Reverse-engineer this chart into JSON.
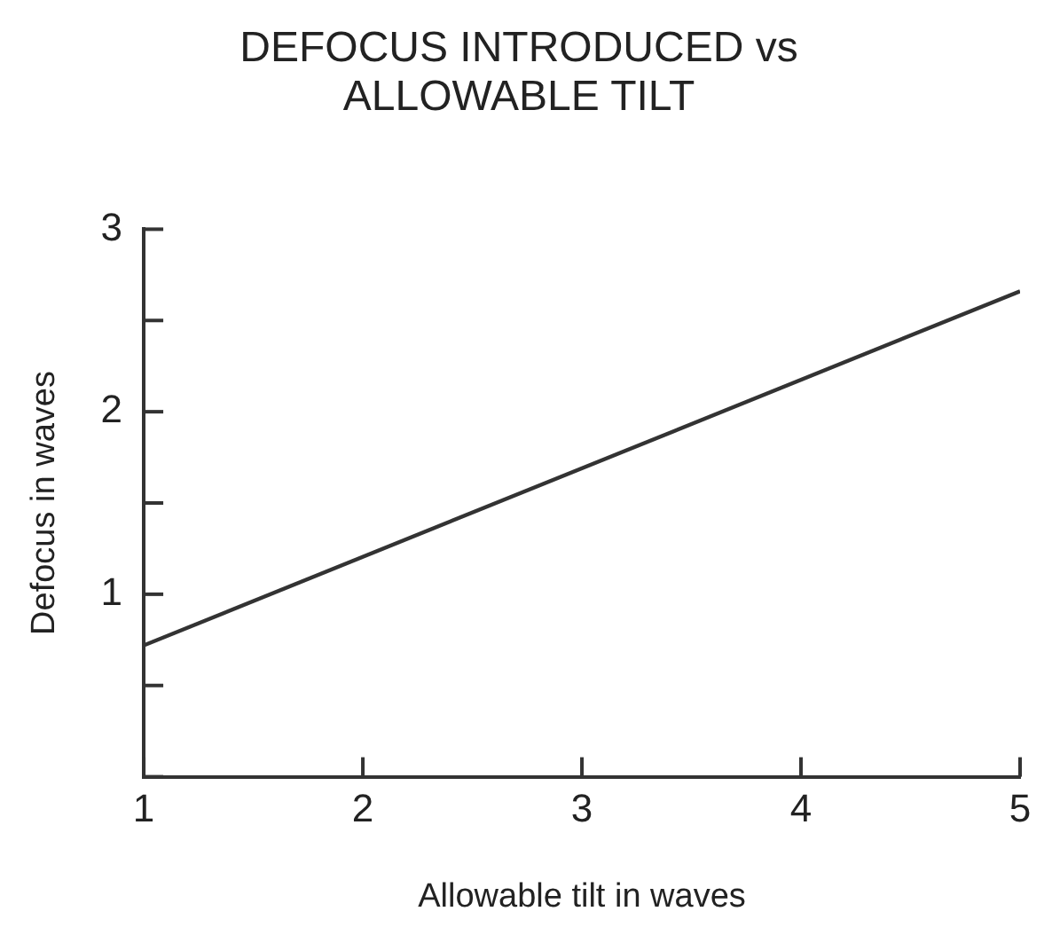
{
  "chart_data": {
    "type": "line",
    "title": "DEFOCUS INTRODUCED vs\nALLOWABLE TILT",
    "xlabel": "Allowable tilt in waves",
    "ylabel": "Defocus in waves",
    "x": [
      1,
      5
    ],
    "series": [
      {
        "color": "#333333",
        "values": [
          0.72,
          2.66
        ]
      }
    ],
    "xlim": [
      1,
      5
    ],
    "xticks": [
      1,
      2,
      3,
      4,
      5
    ],
    "ylim": [
      0,
      3
    ],
    "yticks": [
      {
        "value": 0,
        "label": null
      },
      {
        "value": 0.5,
        "label": null
      },
      1,
      {
        "value": 1.5,
        "label": null
      },
      2,
      {
        "value": 2.5,
        "label": null
      },
      3
    ],
    "grid": false,
    "legend": false,
    "marker": "none",
    "line_style": "solid"
  }
}
